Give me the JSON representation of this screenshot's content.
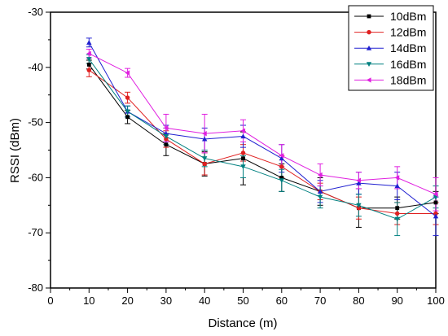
{
  "chart_data": {
    "type": "line",
    "xlabel": "Distance (m)",
    "ylabel": "RSSI (dBm)",
    "xlim": [
      0,
      100
    ],
    "ylim": [
      -80,
      -30
    ],
    "x_ticks": [
      0,
      10,
      20,
      30,
      40,
      50,
      60,
      70,
      80,
      90,
      100
    ],
    "y_ticks": [
      -80,
      -70,
      -60,
      -50,
      -40,
      -30
    ],
    "x": [
      10,
      20,
      30,
      40,
      50,
      60,
      70,
      80,
      90,
      100
    ],
    "grid": false,
    "legend_position": "top-right",
    "series": [
      {
        "name": "10dBm",
        "color": "#000000",
        "marker": "square",
        "values": [
          -39.5,
          -49.0,
          -54.0,
          -57.5,
          -56.5,
          -60.0,
          -62.5,
          -65.5,
          -65.5,
          -64.5
        ],
        "errors": [
          0.8,
          1.2,
          2.0,
          2.2,
          4.8,
          2.5,
          2.5,
          3.5,
          2.0,
          2.0
        ]
      },
      {
        "name": "12dBm",
        "color": "#e02020",
        "marker": "circle",
        "values": [
          -40.5,
          -45.5,
          -53.0,
          -57.5,
          -55.5,
          -58.0,
          -62.5,
          -65.5,
          -66.5,
          -66.5
        ],
        "errors": [
          1.2,
          1.0,
          1.5,
          2.0,
          1.5,
          2.0,
          1.5,
          2.0,
          2.0,
          2.0
        ]
      },
      {
        "name": "14dBm",
        "color": "#2020d0",
        "marker": "triangle-up",
        "values": [
          -35.5,
          -48.0,
          -52.0,
          -53.0,
          -52.5,
          -56.5,
          -62.5,
          -61.0,
          -61.5,
          -67.0
        ],
        "errors": [
          0.8,
          1.0,
          1.5,
          2.0,
          2.0,
          2.5,
          2.0,
          2.0,
          2.5,
          3.5
        ]
      },
      {
        "name": "16dBm",
        "color": "#008080",
        "marker": "triangle-down",
        "values": [
          -38.5,
          -48.0,
          -52.5,
          -56.5,
          -58.0,
          -60.5,
          -63.5,
          -65.0,
          -67.5,
          -63.5
        ],
        "errors": [
          0.8,
          1.0,
          1.5,
          1.5,
          2.0,
          2.0,
          2.0,
          2.0,
          3.0,
          2.0
        ]
      },
      {
        "name": "18dBm",
        "color": "#e020e0",
        "marker": "triangle-left",
        "values": [
          -37.5,
          -41.0,
          -51.0,
          -52.0,
          -51.5,
          -56.0,
          -59.5,
          -60.5,
          -60.0,
          -63.0
        ],
        "errors": [
          0.8,
          0.8,
          2.5,
          3.5,
          2.0,
          2.0,
          2.0,
          1.5,
          2.0,
          3.0
        ]
      }
    ]
  }
}
